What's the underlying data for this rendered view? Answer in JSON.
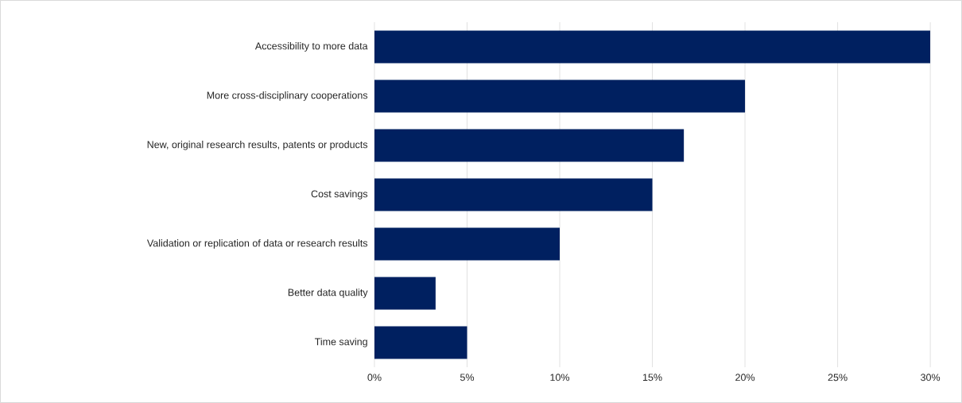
{
  "chart_data": {
    "type": "bar",
    "orientation": "horizontal",
    "categories": [
      "Accessibility to more data",
      "More cross-disciplinary cooperations",
      "New, original research results, patents or products",
      "Cost savings",
      "Validation or replication of data or research results",
      "Better data quality",
      "Time saving"
    ],
    "values": [
      30,
      20,
      16.7,
      15,
      10,
      3.3,
      5
    ],
    "color": "#002060",
    "xlim": [
      0,
      30
    ],
    "xticks": [
      {
        "value": 0,
        "label": "0%"
      },
      {
        "value": 5,
        "label": "5%"
      },
      {
        "value": 10,
        "label": "10%"
      },
      {
        "value": 15,
        "label": "15%"
      },
      {
        "value": 20,
        "label": "20%"
      },
      {
        "value": 25,
        "label": "25%"
      },
      {
        "value": 30,
        "label": "30%"
      }
    ],
    "grid": "x"
  }
}
